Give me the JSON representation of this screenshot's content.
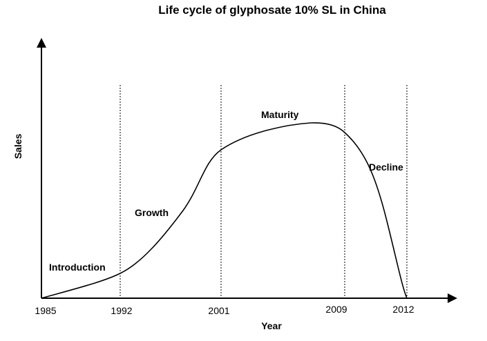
{
  "chart_data": {
    "type": "line",
    "title": "Life cycle of glyphosate  10% SL in China",
    "xlabel": "Year",
    "ylabel": "Sales",
    "x_ticks": [
      "1985",
      "1992",
      "2001",
      "2009",
      "2012"
    ],
    "stage_boundaries": [
      "1992",
      "2001",
      "2009",
      "2012"
    ],
    "stages": [
      {
        "label": "Introduction"
      },
      {
        "label": "Growth"
      },
      {
        "label": "Maturity"
      },
      {
        "label": "Decline"
      }
    ],
    "grid": false,
    "y_values_shown": false,
    "colors": {
      "line": "#000000",
      "boundary": "#000000"
    }
  }
}
